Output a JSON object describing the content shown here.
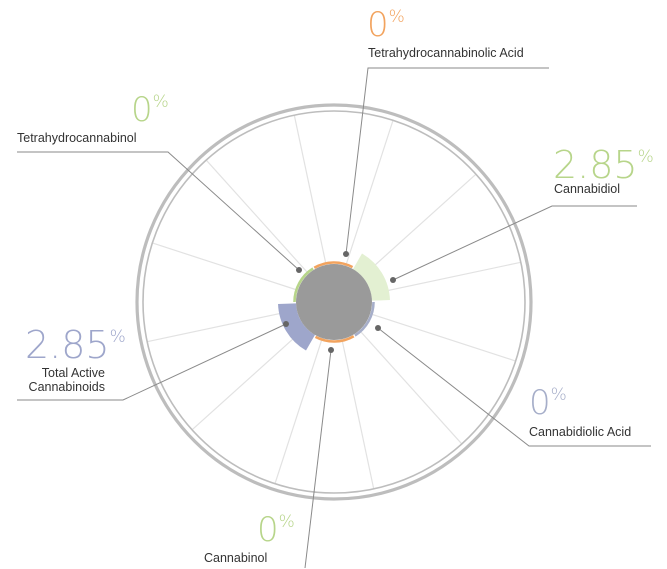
{
  "colors": {
    "thca": "#f2a35e",
    "cbd": "#b7d58a",
    "cbd_ring": "#e3f0d2",
    "cbda": "#a6aec9",
    "tac": "#9ea6cb",
    "thc": "#b7d58a",
    "cbn": "#b7d58a",
    "outer_ring": "#bdbdbd",
    "spoke": "#e2e2e2",
    "center": "#9a9a9a",
    "leader": "#8a8a8a"
  },
  "chart_data": {
    "type": "radial",
    "unit": "%",
    "metrics": [
      {
        "key": "thca",
        "name": "Tetrahydrocannabinolic Acid",
        "value": 0,
        "display": "0"
      },
      {
        "key": "cbd",
        "name": "Cannabidiol",
        "value": 2.85,
        "display": "2.85"
      },
      {
        "key": "cbda",
        "name": "Cannabidiolic Acid",
        "value": 0,
        "display": "0"
      },
      {
        "key": "cbn",
        "name": "Cannabinol",
        "value": 0,
        "display": "0"
      },
      {
        "key": "tac",
        "name": "Total Active Cannabinoids",
        "value": 2.85,
        "display": "2.85"
      },
      {
        "key": "thc",
        "name": "Tetrahydrocannabinol",
        "value": 0,
        "display": "0"
      }
    ]
  },
  "labels": {
    "thca": {
      "value": "0",
      "unit": "%",
      "name": "Tetrahydrocannabinolic Acid"
    },
    "cbd": {
      "value": "2.85",
      "unit": "%",
      "name": "Cannabidiol"
    },
    "cbda": {
      "value": "0",
      "unit": "%",
      "name": "Cannabidiolic Acid"
    },
    "cbn": {
      "value": "0",
      "unit": "%",
      "name": "Cannabinol"
    },
    "tac": {
      "value": "2.85",
      "unit": "%",
      "name_line1": "Total Active",
      "name_line2": "Cannabinoids"
    },
    "thc": {
      "value": "0",
      "unit": "%",
      "name": "Tetrahydrocannabinol"
    }
  }
}
